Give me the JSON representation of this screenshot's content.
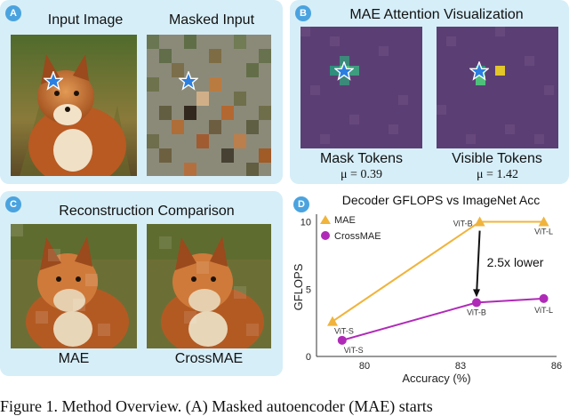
{
  "panels": {
    "a": {
      "letter": "A",
      "left_title": "Input Image",
      "right_title": "Masked Input"
    },
    "b": {
      "letter": "B",
      "title": "MAE Attention Visualization",
      "left_caption": "Mask Tokens",
      "left_mu": "μ = 0.39",
      "right_caption": "Visible Tokens",
      "right_mu": "μ = 1.42"
    },
    "c": {
      "letter": "C",
      "title": "Reconstruction Comparison",
      "left_caption": "MAE",
      "right_caption": "CrossMAE"
    },
    "d": {
      "letter": "D"
    }
  },
  "icons": {
    "query_marker": "star-icon"
  },
  "colors": {
    "panel_bg": "#d6eef8",
    "letter_badge": "#4aa3df",
    "mae": "#f0b43c",
    "crossmae": "#b02ab8",
    "attention_bg": "#5a3f73"
  },
  "figure_caption": "Figure 1. Method Overview. (A) Masked autoencoder (MAE) starts",
  "chart_data": {
    "type": "line",
    "title": "Decoder GFLOPS vs ImageNet Acc",
    "xlabel": "Accuracy (%)",
    "ylabel": "GFLOPS",
    "xlim": [
      78.5,
      86
    ],
    "ylim": [
      0,
      10.3
    ],
    "xticks": [
      "80",
      "83",
      "86"
    ],
    "yticks": [
      "0",
      "5",
      "10"
    ],
    "legend_position": "top-left",
    "series": [
      {
        "name": "MAE",
        "marker": "triangle",
        "color": "#f0b43c",
        "points": [
          {
            "x": 79.0,
            "y": 2.6,
            "label": "ViT-S"
          },
          {
            "x": 83.6,
            "y": 10.0,
            "label": "ViT-B"
          },
          {
            "x": 85.6,
            "y": 10.0,
            "label": "ViT-L"
          }
        ]
      },
      {
        "name": "CrossMAE",
        "marker": "circle",
        "color": "#b02ab8",
        "points": [
          {
            "x": 79.3,
            "y": 1.2,
            "label": "ViT-S"
          },
          {
            "x": 83.5,
            "y": 4.0,
            "label": "ViT-B"
          },
          {
            "x": 85.6,
            "y": 4.3,
            "label": "ViT-L"
          }
        ]
      }
    ],
    "annotation": {
      "text": "2.5x lower",
      "arrow_from_x": 83.6,
      "arrow_from_y": 10.0,
      "arrow_to_x": 83.5,
      "arrow_to_y": 4.0
    }
  }
}
